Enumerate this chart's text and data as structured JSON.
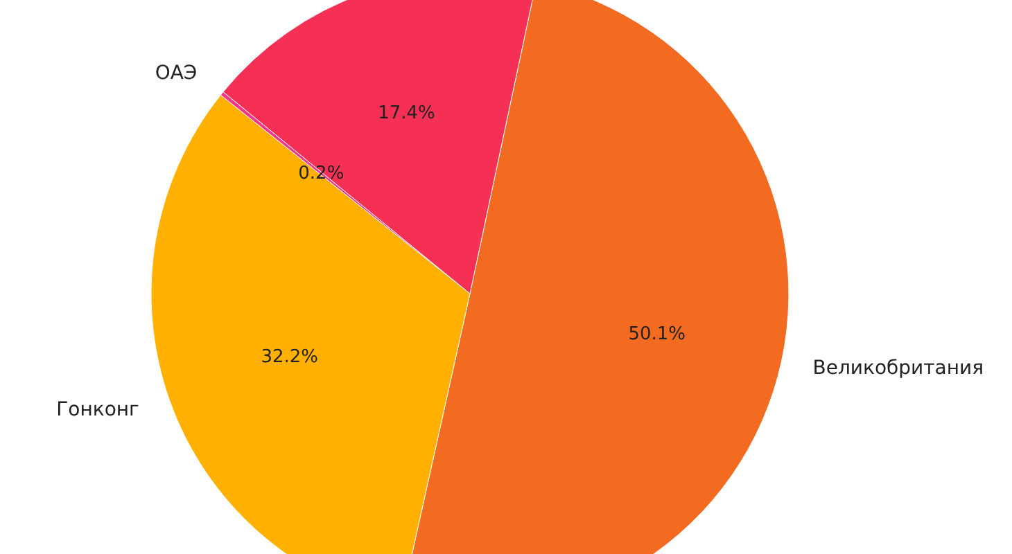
{
  "chart_data": {
    "type": "pie",
    "categories": [
      "Великобритания",
      "Гонконг",
      "ОАЭ",
      null
    ],
    "values": [
      50.1,
      32.2,
      0.2,
      17.4
    ],
    "colors": [
      "#f26b21",
      "#ffb000",
      "#f5358a",
      "#f62f55"
    ],
    "value_labels": [
      "50.1%",
      "32.2%",
      "0.2%",
      "17.4%"
    ],
    "legend": false
  }
}
